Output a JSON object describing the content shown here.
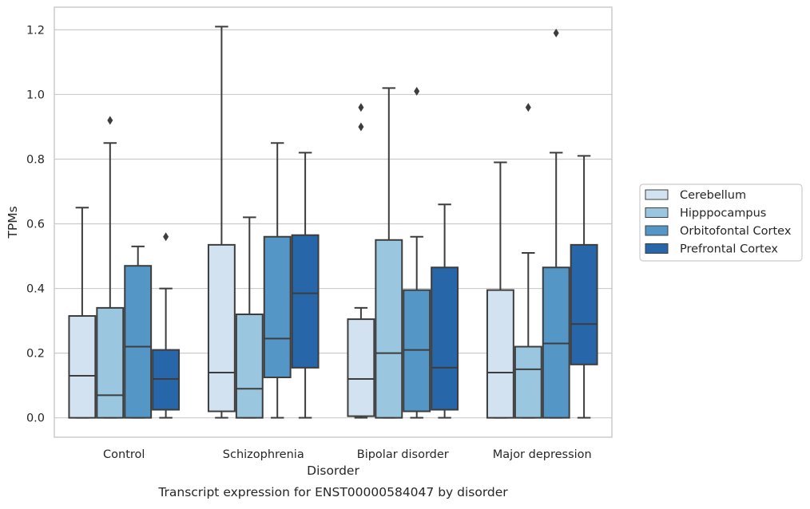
{
  "chart_data": {
    "type": "box",
    "caption": "Transcript expression for ENST00000584047 by disorder",
    "xlabel": "Disorder",
    "ylabel": "TPMs",
    "ylim": [
      -0.06,
      1.27
    ],
    "yticks": [
      0.0,
      0.2,
      0.4,
      0.6,
      0.8,
      1.0,
      1.2
    ],
    "ytick_labels": [
      "0.0",
      "0.2",
      "0.4",
      "0.6",
      "0.8",
      "1.0",
      "1.2"
    ],
    "grid": "horizontal",
    "legend_position": "right",
    "categories": [
      "Control",
      "Schizophrenia",
      "Bipolar disorder",
      "Major depression"
    ],
    "series": [
      {
        "name": "Cerebellum",
        "color": "#d3e2f0",
        "boxes": [
          {
            "whislo": 0.0,
            "q1": 0.0,
            "med": 0.13,
            "q3": 0.315,
            "whishi": 0.65,
            "fliers": []
          },
          {
            "whislo": 0.0,
            "q1": 0.02,
            "med": 0.14,
            "q3": 0.535,
            "whishi": 1.21,
            "fliers": []
          },
          {
            "whislo": 0.0,
            "q1": 0.005,
            "med": 0.12,
            "q3": 0.305,
            "whishi": 0.34,
            "fliers": [
              0.9,
              0.96
            ]
          },
          {
            "whislo": 0.0,
            "q1": 0.0,
            "med": 0.14,
            "q3": 0.395,
            "whishi": 0.79,
            "fliers": []
          }
        ]
      },
      {
        "name": "Hipppocampus",
        "color": "#9ac7df",
        "boxes": [
          {
            "whislo": 0.0,
            "q1": 0.0,
            "med": 0.07,
            "q3": 0.34,
            "whishi": 0.85,
            "fliers": [
              0.92
            ]
          },
          {
            "whislo": 0.0,
            "q1": 0.0,
            "med": 0.09,
            "q3": 0.32,
            "whishi": 0.62,
            "fliers": []
          },
          {
            "whislo": 0.0,
            "q1": 0.0,
            "med": 0.2,
            "q3": 0.55,
            "whishi": 1.02,
            "fliers": []
          },
          {
            "whislo": 0.0,
            "q1": 0.0,
            "med": 0.15,
            "q3": 0.22,
            "whishi": 0.51,
            "fliers": [
              0.96
            ]
          }
        ]
      },
      {
        "name": "Orbitofontal Cortex",
        "color": "#5497c7",
        "boxes": [
          {
            "whislo": 0.0,
            "q1": 0.0,
            "med": 0.22,
            "q3": 0.47,
            "whishi": 0.53,
            "fliers": []
          },
          {
            "whislo": 0.0,
            "q1": 0.125,
            "med": 0.245,
            "q3": 0.56,
            "whishi": 0.85,
            "fliers": []
          },
          {
            "whislo": 0.0,
            "q1": 0.02,
            "med": 0.21,
            "q3": 0.395,
            "whishi": 0.56,
            "fliers": [
              1.01
            ]
          },
          {
            "whislo": 0.0,
            "q1": 0.0,
            "med": 0.23,
            "q3": 0.465,
            "whishi": 0.82,
            "fliers": [
              1.19
            ]
          }
        ]
      },
      {
        "name": "Prefrontal Cortex",
        "color": "#2766a8",
        "boxes": [
          {
            "whislo": 0.0,
            "q1": 0.025,
            "med": 0.12,
            "q3": 0.21,
            "whishi": 0.4,
            "fliers": [
              0.56
            ]
          },
          {
            "whislo": 0.0,
            "q1": 0.155,
            "med": 0.385,
            "q3": 0.565,
            "whishi": 0.82,
            "fliers": []
          },
          {
            "whislo": 0.0,
            "q1": 0.025,
            "med": 0.155,
            "q3": 0.465,
            "whishi": 0.66,
            "fliers": []
          },
          {
            "whislo": 0.0,
            "q1": 0.165,
            "med": 0.29,
            "q3": 0.535,
            "whishi": 0.81,
            "fliers": []
          }
        ]
      }
    ]
  }
}
